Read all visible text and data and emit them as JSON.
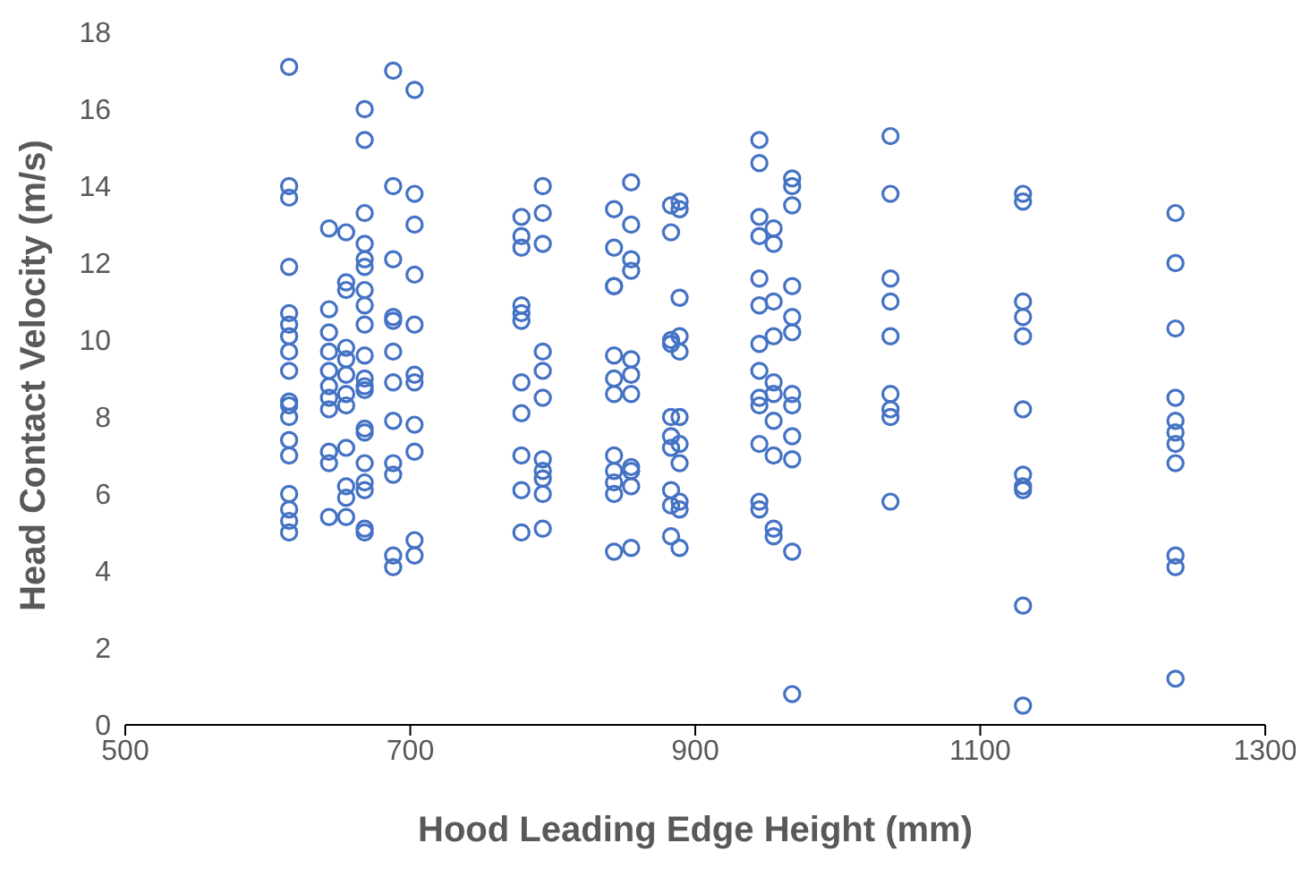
{
  "chart_data": {
    "type": "scatter",
    "xlabel": "Hood Leading Edge Height (mm)",
    "ylabel": "Head Contact Velocity (m/s)",
    "xlim": [
      500,
      1300
    ],
    "xticks": [
      500,
      700,
      900,
      1100,
      1300
    ],
    "ylim": [
      0,
      18
    ],
    "yticks": [
      0,
      2,
      4,
      6,
      8,
      10,
      12,
      14,
      16,
      18
    ],
    "grid": false,
    "marker": "circle",
    "series": [
      {
        "color": "#4472c4",
        "x": [
          615,
          615,
          615,
          615,
          615,
          615,
          615,
          615,
          615,
          615,
          615,
          615,
          615,
          615,
          615,
          615,
          615,
          615,
          643,
          643,
          643,
          643,
          643,
          643,
          643,
          643,
          643,
          643,
          643,
          655,
          655,
          655,
          655,
          655,
          655,
          655,
          655,
          655,
          655,
          655,
          655,
          668,
          668,
          668,
          668,
          668,
          668,
          668,
          668,
          668,
          668,
          668,
          668,
          668,
          668,
          668,
          668,
          668,
          668,
          668,
          668,
          688,
          688,
          688,
          688,
          688,
          688,
          688,
          688,
          688,
          688,
          688,
          688,
          703,
          703,
          703,
          703,
          703,
          703,
          703,
          703,
          703,
          703,
          703,
          778,
          778,
          778,
          778,
          778,
          778,
          778,
          778,
          778,
          778,
          778,
          793,
          793,
          793,
          793,
          793,
          793,
          793,
          793,
          793,
          793,
          793,
          843,
          843,
          843,
          843,
          843,
          843,
          843,
          843,
          843,
          843,
          843,
          843,
          855,
          855,
          855,
          855,
          855,
          855,
          855,
          855,
          855,
          855,
          855,
          883,
          883,
          883,
          883,
          883,
          883,
          883,
          883,
          883,
          883,
          889,
          889,
          889,
          889,
          889,
          889,
          889,
          889,
          889,
          889,
          889,
          945,
          945,
          945,
          945,
          945,
          945,
          945,
          945,
          945,
          945,
          945,
          945,
          945,
          955,
          955,
          955,
          955,
          955,
          955,
          955,
          955,
          955,
          955,
          968,
          968,
          968,
          968,
          968,
          968,
          968,
          968,
          968,
          968,
          968,
          968,
          1037,
          1037,
          1037,
          1037,
          1037,
          1037,
          1037,
          1037,
          1037,
          1130,
          1130,
          1130,
          1130,
          1130,
          1130,
          1130,
          1130,
          1130,
          1130,
          1130,
          1237,
          1237,
          1237,
          1237,
          1237,
          1237,
          1237,
          1237,
          1237,
          1237,
          1237
        ],
        "values": [
          17.1,
          14.0,
          13.7,
          11.9,
          10.7,
          10.4,
          10.1,
          9.7,
          9.2,
          8.4,
          8.3,
          8.0,
          7.4,
          7.0,
          6.0,
          5.6,
          5.3,
          5.0,
          12.9,
          10.8,
          10.2,
          9.7,
          9.2,
          8.8,
          8.5,
          8.2,
          7.1,
          6.8,
          5.4,
          12.8,
          11.5,
          11.3,
          9.8,
          9.5,
          9.1,
          8.6,
          8.3,
          7.2,
          6.2,
          5.9,
          5.4,
          16.0,
          15.2,
          13.3,
          12.5,
          12.1,
          11.9,
          11.3,
          10.9,
          10.4,
          9.6,
          9.0,
          8.8,
          8.7,
          7.7,
          7.6,
          6.8,
          6.3,
          6.1,
          5.1,
          5.0,
          17.0,
          14.0,
          12.1,
          10.6,
          10.5,
          9.7,
          8.9,
          7.9,
          6.8,
          6.5,
          4.4,
          4.1,
          16.5,
          13.8,
          13.0,
          11.7,
          10.4,
          9.1,
          8.9,
          7.8,
          7.1,
          4.8,
          4.4,
          13.2,
          12.7,
          12.4,
          10.9,
          10.7,
          10.5,
          8.9,
          8.1,
          7.0,
          6.1,
          5.0,
          14.0,
          13.3,
          12.5,
          9.7,
          9.2,
          8.5,
          6.9,
          6.6,
          6.4,
          6.0,
          5.1,
          13.4,
          12.4,
          11.4,
          11.4,
          9.6,
          9.0,
          8.6,
          7.0,
          6.6,
          6.3,
          6.0,
          4.5,
          14.1,
          13.0,
          12.1,
          11.8,
          9.5,
          9.1,
          8.6,
          6.7,
          6.6,
          6.2,
          4.6,
          13.5,
          12.8,
          10.0,
          9.9,
          8.0,
          7.5,
          7.2,
          6.1,
          5.7,
          4.9,
          13.6,
          13.4,
          11.1,
          10.1,
          9.7,
          8.0,
          7.3,
          6.8,
          5.8,
          5.6,
          4.6,
          15.2,
          14.6,
          13.2,
          12.7,
          11.6,
          10.9,
          9.9,
          9.2,
          8.5,
          8.3,
          7.3,
          5.8,
          5.6,
          12.9,
          12.5,
          11.0,
          10.1,
          8.9,
          8.6,
          7.9,
          7.0,
          5.1,
          4.9,
          14.2,
          14.0,
          13.5,
          11.4,
          10.6,
          10.2,
          8.6,
          8.3,
          7.5,
          6.9,
          4.5,
          0.8,
          15.3,
          13.8,
          11.6,
          11.0,
          10.1,
          8.6,
          8.2,
          8.0,
          5.8,
          13.8,
          13.6,
          11.0,
          10.6,
          10.1,
          8.2,
          6.5,
          6.2,
          6.1,
          3.1,
          0.5,
          13.3,
          12.0,
          10.3,
          8.5,
          7.9,
          7.6,
          7.3,
          6.8,
          4.4,
          4.1,
          1.2
        ]
      }
    ]
  }
}
